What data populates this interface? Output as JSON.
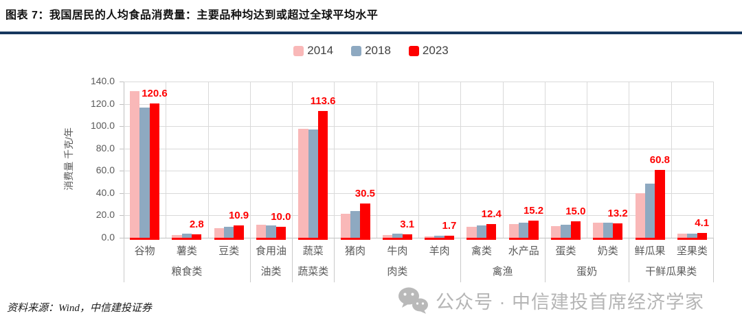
{
  "title": "图表 7：我国居民的人均食品消费量：主要品种均达到或超过全球平均水平",
  "accent_colors": {
    "title_rule": "#17375E",
    "grid": "#D9D9D9",
    "axis": "#BFBFBF",
    "label_text": "#595959"
  },
  "legend": [
    {
      "label": "2014",
      "color": "#F9B8B8"
    },
    {
      "label": "2018",
      "color": "#8EA9C1"
    },
    {
      "label": "2023",
      "color": "#FE0000"
    }
  ],
  "source": "资料来源：Wind，中信建投证券",
  "watermark": {
    "icon": "wechat-icon",
    "text": "公众号 · 中信建投首席经济学家"
  },
  "chart_data": {
    "type": "bar",
    "title": "我国居民的人均食品消费量",
    "ylabel": "消费量 千克/年",
    "ylim": [
      0,
      140
    ],
    "ytick_step": 20,
    "grid": true,
    "legend_position": "top",
    "categories": [
      "谷物",
      "薯类",
      "豆类",
      "食用油",
      "蔬菜",
      "猪肉",
      "牛肉",
      "羊肉",
      "禽类",
      "水产品",
      "蛋类",
      "奶类",
      "鲜瓜果",
      "坚果类"
    ],
    "groups": [
      {
        "label": "粮食类",
        "from": 0,
        "to": 2
      },
      {
        "label": "油类",
        "from": 3,
        "to": 3
      },
      {
        "label": "蔬菜类",
        "from": 4,
        "to": 4
      },
      {
        "label": "肉类",
        "from": 5,
        "to": 7
      },
      {
        "label": "禽渔",
        "from": 8,
        "to": 9
      },
      {
        "label": "蛋奶",
        "from": 10,
        "to": 11
      },
      {
        "label": "干鲜瓜果类",
        "from": 12,
        "to": 13
      }
    ],
    "series": [
      {
        "name": "2014",
        "color": "#F9B8B8",
        "values": [
          131.6,
          2.5,
          8.8,
          11.5,
          97.6,
          21.5,
          2.5,
          1.3,
          9.8,
          12.3,
          10.2,
          13.8,
          40.0,
          3.4
        ]
      },
      {
        "name": "2018",
        "color": "#8EA9C1",
        "values": [
          116.9,
          3.6,
          9.9,
          11.0,
          97.0,
          24.0,
          3.4,
          1.8,
          11.3,
          13.6,
          11.6,
          13.4,
          48.7,
          3.9
        ]
      },
      {
        "name": "2023",
        "color": "#FE0000",
        "values": [
          120.6,
          2.8,
          10.9,
          10.0,
          113.6,
          30.5,
          3.1,
          1.7,
          12.4,
          15.2,
          15.0,
          13.2,
          60.8,
          4.1
        ],
        "labels": [
          "120.6",
          "2.8",
          "10.9",
          "10.0",
          "113.6",
          "30.5",
          "3.1",
          "1.7",
          "12.4",
          "15.2",
          "15.0",
          "13.2",
          "60.8",
          "4.1"
        ],
        "label_color": "#FE0000"
      }
    ]
  }
}
